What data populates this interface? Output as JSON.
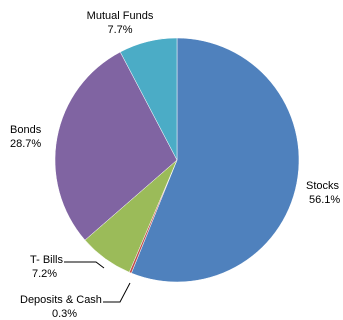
{
  "chart_data": {
    "type": "pie",
    "title": "",
    "categories": [
      "Stocks",
      "Deposits & Cash",
      "T- Bills",
      "Bonds",
      "Mutual Funds"
    ],
    "values": [
      56.1,
      0.3,
      7.2,
      28.7,
      7.7
    ],
    "value_labels": [
      "56.1%",
      "0.3%",
      "7.2%",
      "28.7%",
      "7.7%"
    ],
    "colors": [
      "#4F81BD",
      "#C0504D",
      "#9BBB59",
      "#8064A2",
      "#4BACC6"
    ],
    "start_angle_deg": 0,
    "direction": "clockwise",
    "legend": "none",
    "labels_outside": true
  }
}
